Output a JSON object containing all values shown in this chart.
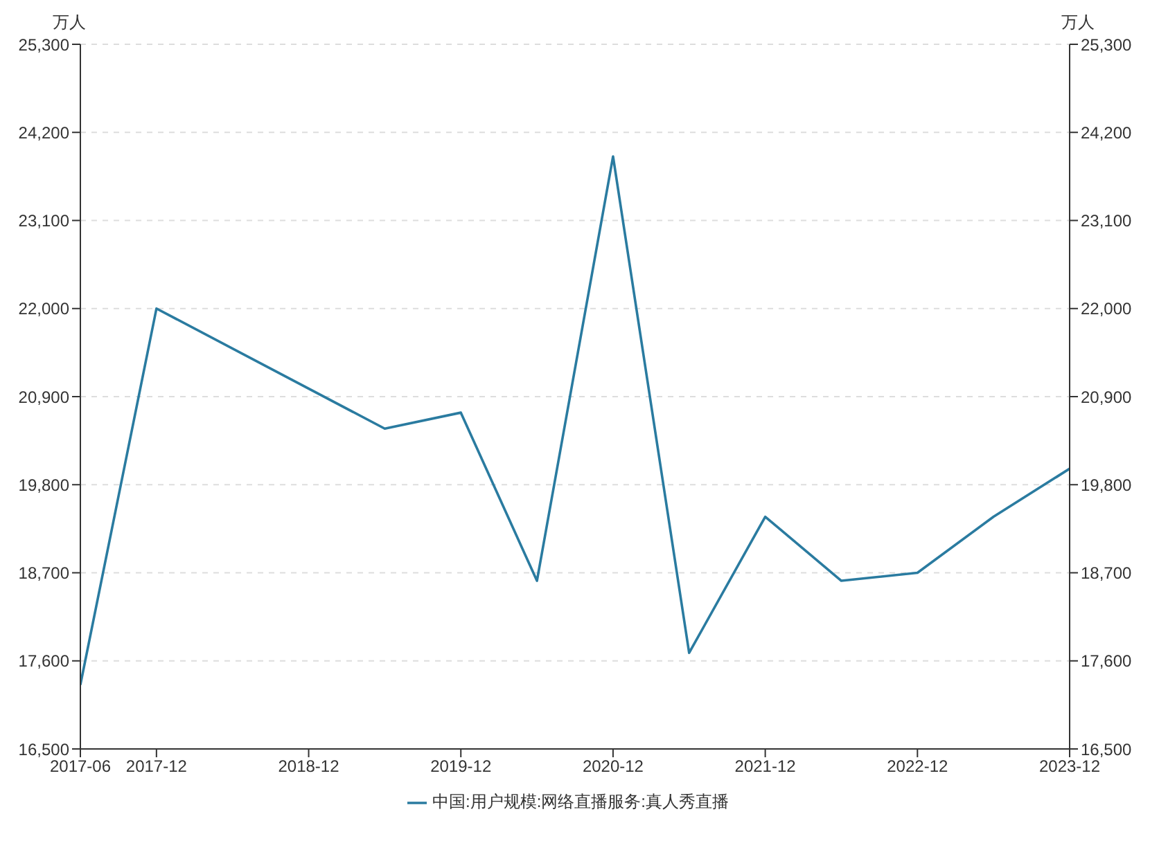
{
  "chart_data": {
    "type": "line",
    "ylabel": "万人",
    "y2label": "万人",
    "x": [
      "2017-06",
      "2017-12",
      "2019-06",
      "2019-12",
      "2020-06",
      "2020-12",
      "2021-06",
      "2021-12",
      "2022-06",
      "2022-12",
      "2023-06",
      "2023-12"
    ],
    "series": [
      {
        "name": "中国:用户规模:网络直播服务:真人秀直播",
        "color": "#2a7ba0",
        "values": [
          17300,
          22000,
          20500,
          20700,
          18600,
          23900,
          17700,
          19400,
          18600,
          18700,
          19400,
          20000
        ]
      }
    ],
    "xlim": [
      "2017-06",
      "2023-12"
    ],
    "xticks": [
      "2017-06",
      "2017-12",
      "2018-12",
      "2019-12",
      "2020-12",
      "2021-12",
      "2022-12",
      "2023-12"
    ],
    "ylim": [
      16500,
      25300
    ],
    "yticks": [
      {
        "value": 16500,
        "label": "16,500"
      },
      {
        "value": 17600,
        "label": "17,600"
      },
      {
        "value": 18700,
        "label": "18,700"
      },
      {
        "value": 19800,
        "label": "19,800"
      },
      {
        "value": 20900,
        "label": "20,900"
      },
      {
        "value": 22000,
        "label": "22,000"
      },
      {
        "value": 23100,
        "label": "23,100"
      },
      {
        "value": 24200,
        "label": "24,200"
      },
      {
        "value": 25300,
        "label": "25,300"
      }
    ],
    "y2lim": [
      16500,
      25300
    ],
    "y2ticks": [
      {
        "value": 16500,
        "label": "16,500"
      },
      {
        "value": 17600,
        "label": "17,600"
      },
      {
        "value": 18700,
        "label": "18,700"
      },
      {
        "value": 19800,
        "label": "19,800"
      },
      {
        "value": 20900,
        "label": "20,900"
      },
      {
        "value": 22000,
        "label": "22,000"
      },
      {
        "value": 23100,
        "label": "23,100"
      },
      {
        "value": 24200,
        "label": "24,200"
      },
      {
        "value": 25300,
        "label": "25,300"
      }
    ],
    "grid": "y",
    "legend": "bottom",
    "marker": "none",
    "line_style": "solid"
  }
}
